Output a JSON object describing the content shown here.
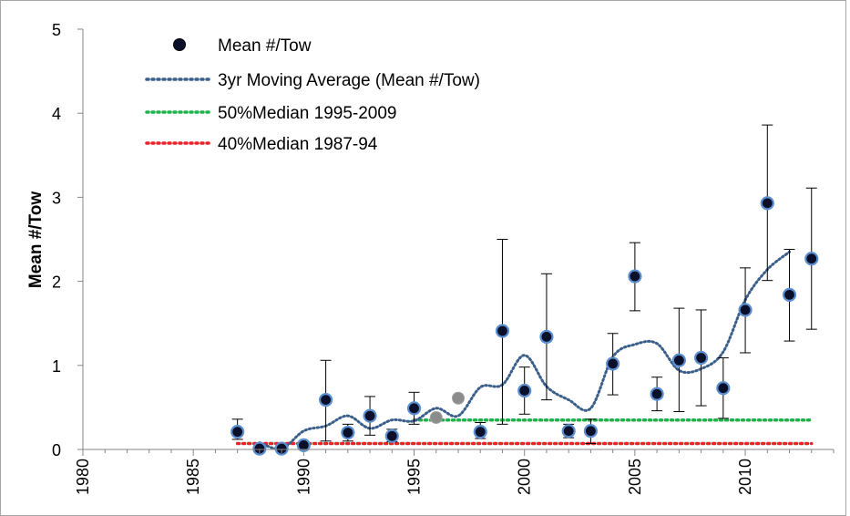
{
  "chart_data": {
    "type": "scatter",
    "title": "",
    "xlabel": "",
    "ylabel": "Mean #/Tow",
    "xlim": [
      1980,
      2014
    ],
    "ylim": [
      0,
      5
    ],
    "x_ticks": [
      "1980",
      "1985",
      "1990",
      "1995",
      "2000",
      "2005",
      "2010"
    ],
    "y_ticks": [
      "0",
      "1",
      "2",
      "3",
      "4",
      "5"
    ],
    "grid": false,
    "legend_position": "top-left",
    "legend": [
      "Mean #/Tow",
      "3yr Moving Average (Mean #/Tow)",
      "50%Median 1995-2009",
      "40%Median 1987-94"
    ],
    "series": [
      {
        "name": "Mean #/Tow",
        "color": "#0a0f2a",
        "edge_color": "#5b8fd0",
        "highlight_color": "#8c8c8c",
        "points": [
          {
            "x": 1987,
            "y": 0.21,
            "lo": 0.12,
            "hi": 0.36
          },
          {
            "x": 1988,
            "y": 0.01
          },
          {
            "x": 1989,
            "y": 0.01
          },
          {
            "x": 1990,
            "y": 0.05
          },
          {
            "x": 1991,
            "y": 0.59,
            "lo": 0.1,
            "hi": 1.06
          },
          {
            "x": 1992,
            "y": 0.2,
            "lo": 0.1,
            "hi": 0.3
          },
          {
            "x": 1993,
            "y": 0.4,
            "lo": 0.17,
            "hi": 0.63
          },
          {
            "x": 1994,
            "y": 0.16,
            "lo": 0.09,
            "hi": 0.24
          },
          {
            "x": 1995,
            "y": 0.49,
            "lo": 0.3,
            "hi": 0.68
          },
          {
            "x": 1996,
            "y": 0.38,
            "highlight": true
          },
          {
            "x": 1997,
            "y": 0.61,
            "highlight": true
          },
          {
            "x": 1998,
            "y": 0.21,
            "lo": 0.13,
            "hi": 0.32
          },
          {
            "x": 1999,
            "y": 1.41,
            "lo": 0.3,
            "hi": 2.5
          },
          {
            "x": 2000,
            "y": 0.7,
            "lo": 0.42,
            "hi": 0.98
          },
          {
            "x": 2001,
            "y": 1.34,
            "lo": 0.59,
            "hi": 2.09
          },
          {
            "x": 2002,
            "y": 0.22,
            "lo": 0.14,
            "hi": 0.3
          },
          {
            "x": 2003,
            "y": 0.22,
            "lo": 0.07,
            "hi": 0.36
          },
          {
            "x": 2004,
            "y": 1.02,
            "lo": 0.65,
            "hi": 1.38
          },
          {
            "x": 2005,
            "y": 2.06,
            "lo": 1.65,
            "hi": 2.46
          },
          {
            "x": 2006,
            "y": 0.66,
            "lo": 0.46,
            "hi": 0.86
          },
          {
            "x": 2007,
            "y": 1.06,
            "lo": 0.45,
            "hi": 1.68
          },
          {
            "x": 2008,
            "y": 1.09,
            "lo": 0.52,
            "hi": 1.66
          },
          {
            "x": 2009,
            "y": 0.73,
            "lo": 0.37,
            "hi": 1.09
          },
          {
            "x": 2010,
            "y": 1.66,
            "lo": 1.15,
            "hi": 2.16
          },
          {
            "x": 2011,
            "y": 2.93,
            "lo": 2.01,
            "hi": 3.86
          },
          {
            "x": 2012,
            "y": 1.84,
            "lo": 1.29,
            "hi": 2.38
          },
          {
            "x": 2013,
            "y": 2.27,
            "lo": 1.43,
            "hi": 3.11
          }
        ]
      },
      {
        "name": "3yr Moving Average (Mean #/Tow)",
        "color": "#3a5f8a",
        "style": "dotted",
        "x": [
          1988,
          1989,
          1990,
          1991,
          1992,
          1993,
          1994,
          1995,
          1996,
          1997,
          1998,
          1999,
          2000,
          2001,
          2002,
          2003,
          2004,
          2005,
          2006,
          2007,
          2008,
          2009,
          2010,
          2011,
          2012
        ],
        "y": [
          0.08,
          0.01,
          0.22,
          0.28,
          0.4,
          0.25,
          0.35,
          0.34,
          0.49,
          0.4,
          0.74,
          0.77,
          1.12,
          0.75,
          0.59,
          0.49,
          1.1,
          1.25,
          1.26,
          0.94,
          0.96,
          1.16,
          1.78,
          2.14,
          2.35
        ]
      },
      {
        "name": "50%Median 1995-2009",
        "color": "#1db34a",
        "style": "dotted",
        "x": [
          1995,
          2013
        ],
        "y": [
          0.35,
          0.35
        ]
      },
      {
        "name": "40%Median 1987-94",
        "color": "#e8242a",
        "style": "dotted",
        "x": [
          1987,
          2013
        ],
        "y": [
          0.07,
          0.07
        ]
      }
    ]
  }
}
